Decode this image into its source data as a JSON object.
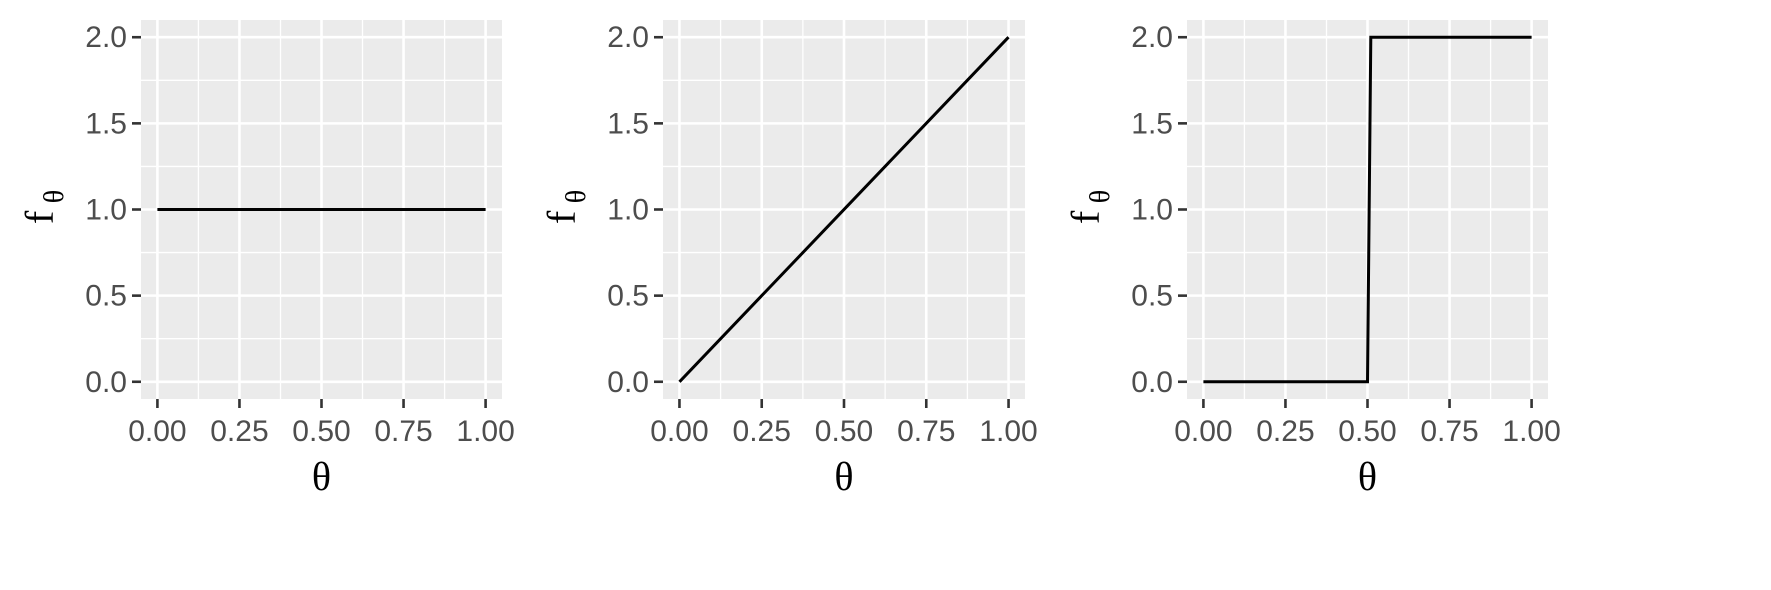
{
  "chart_data": [
    {
      "type": "line",
      "xlabel": "θ",
      "ylabel": {
        "main": "f",
        "sub": "θ"
      },
      "xlim": [
        0,
        1
      ],
      "ylim": [
        0,
        2
      ],
      "x_ticks": [
        "0.00",
        "0.25",
        "0.50",
        "0.75",
        "1.00"
      ],
      "y_ticks": [
        "0.0",
        "0.5",
        "1.0",
        "1.5",
        "2.0"
      ],
      "grid": true,
      "series": [
        {
          "x": [
            0,
            1
          ],
          "y": [
            1,
            1
          ]
        }
      ]
    },
    {
      "type": "line",
      "xlabel": "θ",
      "ylabel": {
        "main": "f",
        "sub": "θ"
      },
      "xlim": [
        0,
        1
      ],
      "ylim": [
        0,
        2
      ],
      "x_ticks": [
        "0.00",
        "0.25",
        "0.50",
        "0.75",
        "1.00"
      ],
      "y_ticks": [
        "0.0",
        "0.5",
        "1.0",
        "1.5",
        "2.0"
      ],
      "grid": true,
      "series": [
        {
          "x": [
            0,
            1
          ],
          "y": [
            0,
            2
          ]
        }
      ]
    },
    {
      "type": "line",
      "xlabel": "θ",
      "ylabel": {
        "main": "f",
        "sub": "θ"
      },
      "xlim": [
        0,
        1
      ],
      "ylim": [
        0,
        2
      ],
      "x_ticks": [
        "0.00",
        "0.25",
        "0.50",
        "0.75",
        "1.00"
      ],
      "y_ticks": [
        "0.0",
        "0.5",
        "1.0",
        "1.5",
        "2.0"
      ],
      "grid": true,
      "series": [
        {
          "x": [
            0,
            0.5,
            0.51,
            1
          ],
          "y": [
            0,
            0,
            2,
            2
          ]
        }
      ]
    }
  ],
  "colors": {
    "panel": "#ebebeb",
    "grid": "#ffffff",
    "line": "#000000",
    "tick_text": "#4d4d4d"
  }
}
